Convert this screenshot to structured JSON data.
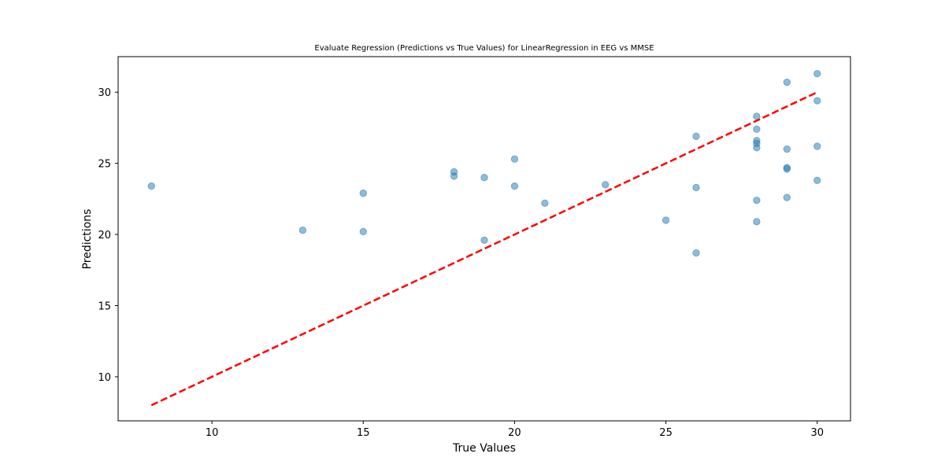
{
  "chart_data": {
    "type": "scatter",
    "title": "Evaluate Regression (Predictions vs True Values) for LinearRegression in EEG vs MMSE",
    "xlabel": "True Values",
    "ylabel": "Predictions",
    "xlim": [
      6.9,
      31.1
    ],
    "ylim": [
      6.9,
      32.5
    ],
    "xticks": [
      10,
      15,
      20,
      25,
      30
    ],
    "yticks": [
      10,
      15,
      20,
      25,
      30
    ],
    "xtick_labels": [
      "10",
      "15",
      "20",
      "25",
      "30"
    ],
    "ytick_labels": [
      "10",
      "15",
      "20",
      "25",
      "30"
    ],
    "grid": false,
    "legend": "none",
    "series": [
      {
        "kind": "points",
        "color": "#1f77b4",
        "opacity": 0.5,
        "x": [
          8,
          13,
          15,
          15,
          18,
          18,
          19,
          19,
          20,
          20,
          21,
          23,
          25,
          26,
          26,
          26,
          28,
          28,
          28,
          28,
          28,
          28,
          28,
          29,
          29,
          29,
          29,
          29,
          30,
          30,
          30,
          30
        ],
        "y": [
          23.4,
          20.3,
          22.9,
          20.2,
          24.4,
          24.1,
          24.0,
          19.6,
          25.3,
          23.4,
          22.2,
          23.5,
          21.0,
          26.9,
          23.3,
          18.7,
          28.3,
          27.4,
          26.6,
          26.4,
          26.1,
          22.4,
          20.9,
          30.7,
          26.0,
          24.7,
          24.6,
          22.6,
          31.3,
          29.4,
          26.2,
          23.8
        ]
      },
      {
        "kind": "reference-line",
        "color": "#ff0000",
        "dash": "dashed",
        "x": [
          8,
          30
        ],
        "y": [
          8,
          30
        ]
      }
    ]
  }
}
